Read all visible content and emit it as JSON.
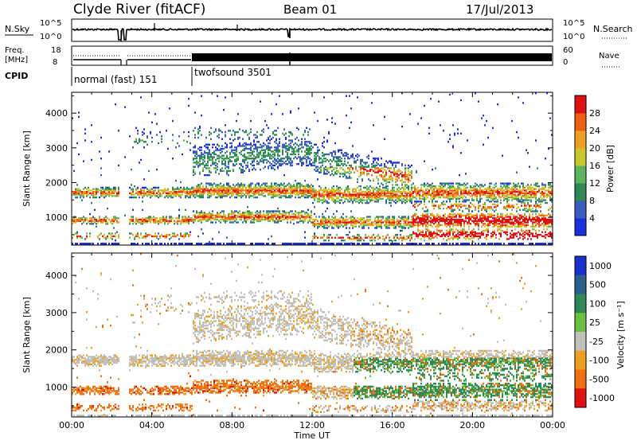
{
  "header": {
    "station": "Clyde River (fitACF)",
    "beam": "Beam 01",
    "date": "17/Jul/2013"
  },
  "chart_data": [
    {
      "type": "line",
      "panel": "noise",
      "left_label": "N.Sky",
      "right_label": "N.Search",
      "left_ticks": [
        "10^5",
        "10^0"
      ],
      "right_ticks": [
        "10^5",
        "10^0"
      ],
      "x_range_hours": [
        0,
        24
      ]
    },
    {
      "type": "line",
      "panel": "frequency",
      "left_label_1": "Freq.",
      "left_label_2": "[MHz]",
      "right_label": "Nave",
      "left_ticks": [
        18,
        8
      ],
      "right_ticks": [
        60,
        0
      ],
      "cpid_label": "CPID",
      "modes": [
        {
          "name": "normal (fast) 151",
          "start_hour": 0,
          "end_hour": 6
        },
        {
          "name": "twofsound 3501",
          "start_hour": 6,
          "end_hour": 24
        }
      ]
    },
    {
      "type": "heatmap",
      "panel": "power",
      "ylabel": "Slant Range [km]",
      "yticks": [
        1000,
        2000,
        3000,
        4000
      ],
      "ylim": [
        200,
        4600
      ],
      "colorbar_label": "Power [dB]",
      "colorbar_ticks": [
        4,
        8,
        12,
        16,
        20,
        24,
        28
      ],
      "colorbar_range": [
        0,
        32
      ],
      "colors": [
        "#1a2fe0",
        "#3a5bbf",
        "#2e8a55",
        "#58b55a",
        "#c8c82a",
        "#f0a020",
        "#f06010",
        "#e01010"
      ]
    },
    {
      "type": "heatmap",
      "panel": "velocity",
      "ylabel": "Slant Range [km]",
      "yticks": [
        1000,
        2000,
        3000,
        4000
      ],
      "ylim": [
        200,
        4600
      ],
      "xlabel": "Time UT",
      "xticks": [
        "00:00",
        "04:00",
        "08:00",
        "12:00",
        "16:00",
        "20:00",
        "00:00"
      ],
      "colorbar_label": "Velocity [m s⁻¹]",
      "colorbar_ticks": [
        "1000",
        "500",
        "100",
        "25",
        "-25",
        "-100",
        "-500",
        "-1000"
      ],
      "colors": [
        "#1a2fd0",
        "#2a6090",
        "#2e8a55",
        "#6cc040",
        "#c0c0bc",
        "#f0a020",
        "#f07010",
        "#e01010"
      ]
    }
  ]
}
